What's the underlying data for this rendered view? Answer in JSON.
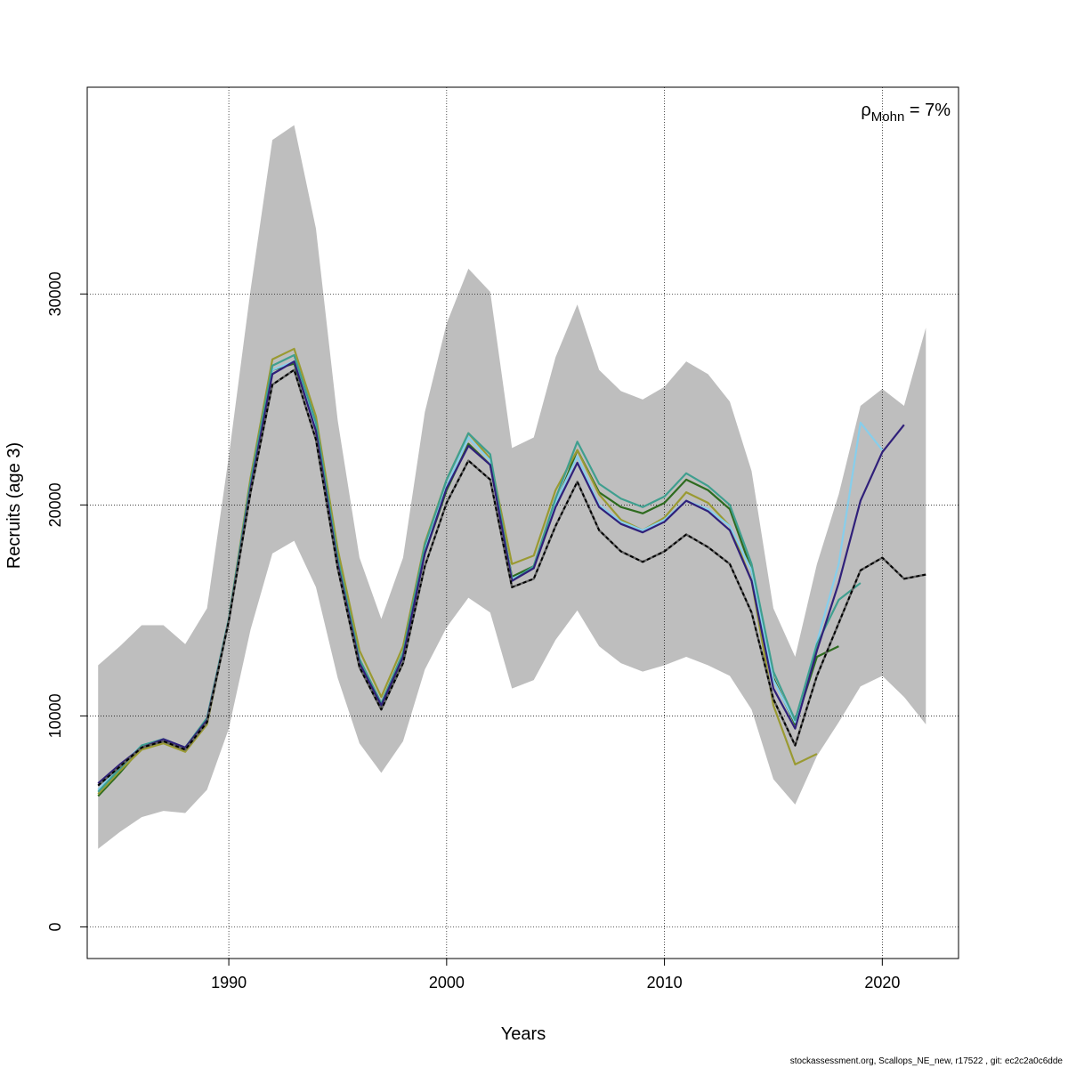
{
  "chart_data": {
    "type": "line",
    "title": "",
    "xlabel": "Years",
    "ylabel": "Recruits (age 3)",
    "xlim": [
      1983.5,
      2023.5
    ],
    "ylim": [
      -1500,
      39800
    ],
    "x_ticks": [
      1990,
      2000,
      2010,
      2020
    ],
    "y_ticks": [
      0,
      10000,
      20000,
      30000
    ],
    "x_tick_labels": [
      "1990",
      "2000",
      "2010",
      "2020"
    ],
    "y_tick_labels": [
      "0",
      "10000",
      "20000",
      "30000"
    ],
    "grid": true,
    "annotation": {
      "symbol": "ρ",
      "subscript": "Mohn",
      "value_text": " = 7%",
      "placement": "top-right"
    },
    "footer": "stockassessment.org, Scallops_NE_new, r17522 , git: ec2c2a0c6dde",
    "band": {
      "color": "#bebebe",
      "x": [
        1984,
        1985,
        1986,
        1987,
        1988,
        1989,
        1990,
        1991,
        1992,
        1993,
        1994,
        1995,
        1996,
        1997,
        1998,
        1999,
        2000,
        2001,
        2002,
        2003,
        2004,
        2005,
        2006,
        2007,
        2008,
        2009,
        2010,
        2011,
        2012,
        2013,
        2014,
        2015,
        2016,
        2017,
        2018,
        2019,
        2020,
        2021,
        2022
      ],
      "upper": [
        12400,
        13300,
        14300,
        14300,
        13400,
        15100,
        22300,
        30200,
        37300,
        38000,
        33100,
        24000,
        17500,
        14600,
        17500,
        24400,
        28600,
        31200,
        30100,
        22700,
        23200,
        27000,
        29500,
        26400,
        25400,
        25000,
        25600,
        26800,
        26200,
        24900,
        21600,
        15100,
        12800,
        17200,
        20500,
        24700,
        25500,
        24700,
        28400
      ],
      "lower": [
        3700,
        4500,
        5200,
        5500,
        5400,
        6500,
        9400,
        14100,
        17700,
        18300,
        16100,
        11800,
        8700,
        7300,
        8800,
        12200,
        14200,
        15600,
        14900,
        11300,
        11700,
        13600,
        15000,
        13300,
        12500,
        12100,
        12400,
        12800,
        12400,
        11900,
        10300,
        7000,
        5800,
        8100,
        9700,
        11400,
        11900,
        10900,
        9600
      ]
    },
    "series": [
      {
        "color": "#2e6b1f",
        "x": [
          1984,
          1985,
          1986,
          1987,
          1988,
          1989,
          1990,
          1991,
          1992,
          1993,
          1994,
          1995,
          1996,
          1997,
          1998,
          1999,
          2000,
          2001,
          2002,
          2003,
          2004,
          2005,
          2006,
          2007,
          2008,
          2009,
          2010,
          2011,
          2012,
          2013,
          2014,
          2015,
          2016,
          2017,
          2018
        ],
        "values": [
          6200,
          7300,
          8500,
          8800,
          8400,
          9700,
          14500,
          20900,
          26400,
          26700,
          23600,
          17200,
          12400,
          10400,
          12800,
          17700,
          20700,
          22900,
          21900,
          16600,
          17100,
          20000,
          22600,
          20600,
          19900,
          19600,
          20100,
          21200,
          20700,
          19800,
          16900,
          11800,
          9600,
          12800,
          13300
        ]
      },
      {
        "color": "#9a9a32",
        "x": [
          1984,
          1985,
          1986,
          1987,
          1988,
          1989,
          1990,
          1991,
          1992,
          1993,
          1994,
          1995,
          1996,
          1997,
          1998,
          1999,
          2000,
          2001,
          2002,
          2003,
          2004,
          2005,
          2006,
          2007,
          2008,
          2009,
          2010,
          2011,
          2012,
          2013,
          2014,
          2015,
          2016,
          2017
        ],
        "values": [
          6300,
          7400,
          8400,
          8700,
          8300,
          9600,
          14600,
          21300,
          26900,
          27400,
          24200,
          17900,
          13100,
          10900,
          13300,
          18200,
          21200,
          23400,
          22200,
          17200,
          17600,
          20700,
          22600,
          20500,
          19300,
          18800,
          19400,
          20600,
          20100,
          19000,
          16400,
          10500,
          7700,
          8200
        ]
      },
      {
        "color": "#87ceeb",
        "x": [
          1984,
          1985,
          1986,
          1987,
          1988,
          1989,
          1990,
          1991,
          1992,
          1993,
          1994,
          1995,
          1996,
          1997,
          1998,
          1999,
          2000,
          2001,
          2002,
          2003,
          2004,
          2005,
          2006,
          2007,
          2008,
          2009,
          2010,
          2011,
          2012,
          2013,
          2014,
          2015,
          2016,
          2017,
          2018,
          2019,
          2020
        ],
        "values": [
          6500,
          7600,
          8600,
          8900,
          8500,
          9800,
          14600,
          21000,
          26400,
          26800,
          23700,
          17300,
          12500,
          10500,
          12900,
          17800,
          20900,
          23200,
          22100,
          16500,
          17000,
          20100,
          22300,
          20000,
          19200,
          18800,
          19300,
          20200,
          19800,
          19000,
          16900,
          11700,
          9700,
          13500,
          17200,
          23900,
          22600
        ]
      },
      {
        "color": "#3f9f8f",
        "x": [
          1984,
          1985,
          1986,
          1987,
          1988,
          1989,
          1990,
          1991,
          1992,
          1993,
          1994,
          1995,
          1996,
          1997,
          1998,
          1999,
          2000,
          2001,
          2002,
          2003,
          2004,
          2005,
          2006,
          2007,
          2008,
          2009,
          2010,
          2011,
          2012,
          2013,
          2014,
          2015,
          2016,
          2017,
          2018,
          2019
        ],
        "values": [
          6400,
          7500,
          8600,
          8900,
          8500,
          9900,
          14600,
          21100,
          26600,
          27100,
          23900,
          17500,
          12700,
          10600,
          13000,
          18100,
          21200,
          23400,
          22400,
          16400,
          17100,
          20300,
          23000,
          21000,
          20300,
          19900,
          20400,
          21500,
          20900,
          20000,
          17200,
          12100,
          9800,
          13400,
          15500,
          16300
        ]
      },
      {
        "color": "#30207a",
        "x": [
          1984,
          1985,
          1986,
          1987,
          1988,
          1989,
          1990,
          1991,
          1992,
          1993,
          1994,
          1995,
          1996,
          1997,
          1998,
          1999,
          2000,
          2001,
          2002,
          2003,
          2004,
          2005,
          2006,
          2007,
          2008,
          2009,
          2010,
          2011,
          2012,
          2013,
          2014,
          2015,
          2016,
          2017,
          2018,
          2019,
          2020,
          2021
        ],
        "values": [
          6800,
          7700,
          8500,
          8900,
          8500,
          9800,
          14500,
          20800,
          26200,
          26800,
          23500,
          17200,
          12500,
          10500,
          12800,
          17700,
          20800,
          22800,
          21900,
          16400,
          17000,
          19900,
          22000,
          19900,
          19100,
          18700,
          19200,
          20200,
          19700,
          18800,
          16400,
          11300,
          9400,
          13100,
          16300,
          20200,
          22500,
          23800
        ]
      },
      {
        "color": "#000000",
        "dashed": true,
        "x": [
          1984,
          1985,
          1986,
          1987,
          1988,
          1989,
          1990,
          1991,
          1992,
          1993,
          1994,
          1995,
          1996,
          1997,
          1998,
          1999,
          2000,
          2001,
          2002,
          2003,
          2004,
          2005,
          2006,
          2007,
          2008,
          2009,
          2010,
          2011,
          2012,
          2013,
          2014,
          2015,
          2016,
          2017,
          2018,
          2019,
          2020,
          2021,
          2022
        ],
        "values": [
          6700,
          7600,
          8500,
          8800,
          8400,
          9700,
          14500,
          20600,
          25700,
          26400,
          23100,
          17000,
          12300,
          10300,
          12500,
          17100,
          20100,
          22100,
          21200,
          16100,
          16500,
          19000,
          21100,
          18800,
          17800,
          17300,
          17800,
          18600,
          18000,
          17200,
          14900,
          10800,
          8600,
          11900,
          14400,
          16900,
          17500,
          16500,
          16700
        ]
      }
    ]
  }
}
